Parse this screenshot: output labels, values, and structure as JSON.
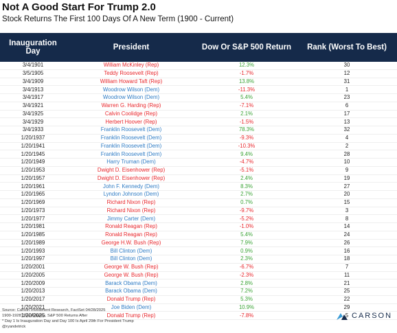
{
  "header": {
    "title": "Not A Good Start For Trump 2.0",
    "subtitle": "Stock Returns The First 100 Days Of A New Term (1900 - Current)"
  },
  "table": {
    "columns": [
      "Inauguration Day",
      "President",
      "Dow Or S&P 500 Return",
      "Rank (Worst To Best)"
    ],
    "rows": [
      [
        "3/4/1901",
        "William McKinley (Rep)",
        "12.3%",
        30
      ],
      [
        "3/5/1905",
        "Teddy Roosevelt (Rep)",
        "-1.7%",
        12
      ],
      [
        "3/4/1909",
        "William Howard Taft (Rep)",
        "13.8%",
        31
      ],
      [
        "3/4/1913",
        "Woodrow Wilson (Dem)",
        "-11.3%",
        1
      ],
      [
        "3/4/1917",
        "Woodrow Wilson (Dem)",
        "5.4%",
        23
      ],
      [
        "3/4/1921",
        "Warren G. Harding (Rep)",
        "-7.1%",
        6
      ],
      [
        "3/4/1925",
        "Calvin Coolidge (Rep)",
        "2.1%",
        17
      ],
      [
        "3/4/1929",
        "Herbert Hoover (Rep)",
        "-1.5%",
        13
      ],
      [
        "3/4/1933",
        "Franklin Roosevelt (Dem)",
        "78.3%",
        32
      ],
      [
        "1/20/1937",
        "Franklin Roosevelt (Dem)",
        "-9.3%",
        4
      ],
      [
        "1/20/1941",
        "Franklin Roosevelt (Dem)",
        "-10.3%",
        2
      ],
      [
        "1/20/1945",
        "Franklin Roosevelt (Dem)",
        "9.4%",
        28
      ],
      [
        "1/20/1949",
        "Harry Truman (Dem)",
        "-4.7%",
        10
      ],
      [
        "1/20/1953",
        "Dwight D. Eisenhower (Rep)",
        "-5.1%",
        9
      ],
      [
        "1/20/1957",
        "Dwight D. Eisenhower (Rep)",
        "2.4%",
        19
      ],
      [
        "1/20/1961",
        "John F. Kennedy (Dem)",
        "8.3%",
        27
      ],
      [
        "1/20/1965",
        "Lyndon Johnson (Dem)",
        "2.7%",
        20
      ],
      [
        "1/20/1969",
        "Richard Nixon (Rep)",
        "0.7%",
        15
      ],
      [
        "1/20/1973",
        "Richard Nixon (Rep)",
        "-9.7%",
        3
      ],
      [
        "1/20/1977",
        "Jimmy Carter (Dem)",
        "-5.2%",
        8
      ],
      [
        "1/20/1981",
        "Ronald Reagan (Rep)",
        "-1.0%",
        14
      ],
      [
        "1/20/1985",
        "Ronald Reagan (Rep)",
        "5.4%",
        24
      ],
      [
        "1/20/1989",
        "George H.W. Bush (Rep)",
        "7.9%",
        26
      ],
      [
        "1/20/1993",
        "Bill Clinton (Dem)",
        "0.9%",
        16
      ],
      [
        "1/20/1997",
        "Bill Clinton (Dem)",
        "2.3%",
        18
      ],
      [
        "1/20/2001",
        "George W. Bush (Rep)",
        "-6.7%",
        7
      ],
      [
        "1/20/2005",
        "George W. Bush (Rep)",
        "-2.3%",
        11
      ],
      [
        "1/20/2009",
        "Barack Obama (Dem)",
        "2.8%",
        21
      ],
      [
        "1/20/2013",
        "Barack Obama (Dem)",
        "7.2%",
        25
      ],
      [
        "1/20/2017",
        "Donald Trump (Rep)",
        "5.3%",
        22
      ],
      [
        "1/20/2021",
        "Joe Biden (Dem)",
        "10.9%",
        29
      ],
      [
        "1/20/2025",
        "Donald Trump (Rep)",
        "-7.8%",
        5
      ]
    ]
  },
  "footer": {
    "notes": [
      "Source: Carson Investment Research, FactSet 04/28/2025",
      "1900-1928 Dow Returns, S&P 500 Returns After",
      "* Day 1 Is Inauguration Day and Day 100 Is April 29th For President Trump",
      "@ryandetrick"
    ],
    "logo": "CARSON"
  }
}
